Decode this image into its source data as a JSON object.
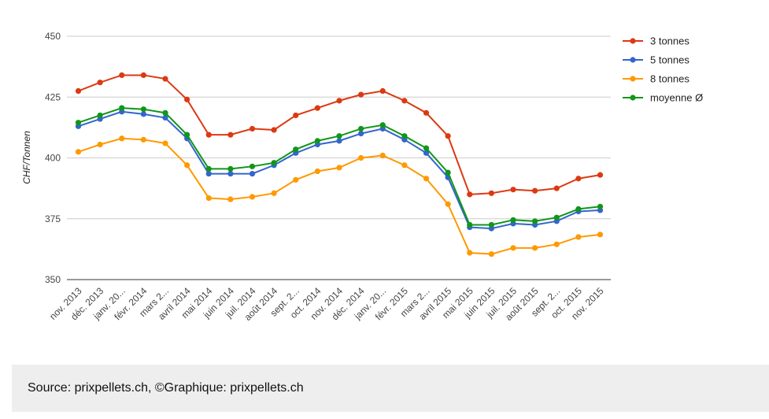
{
  "chart_data": {
    "type": "line",
    "title": "",
    "xlabel": "",
    "ylabel": "CHF/Tonnen",
    "ylim": [
      350,
      450
    ],
    "yticks": [
      350,
      375,
      400,
      425,
      450
    ],
    "grid": true,
    "legend_position": "right",
    "categories": [
      "nov. 2013",
      "déc. 2013",
      "janv. 20...",
      "févr. 2014",
      "mars 2...",
      "avril 2014",
      "mai 2014",
      "juin 2014",
      "juil. 2014",
      "août 2014",
      "sept. 2...",
      "oct. 2014",
      "nov. 2014",
      "déc. 2014",
      "janv. 20...",
      "févr. 2015",
      "mars 2...",
      "avril 2015",
      "mai 2015",
      "juin 2015",
      "juil. 2015",
      "août 2015",
      "sept. 2...",
      "oct. 2015",
      "nov. 2015"
    ],
    "series": [
      {
        "name": "3 tonnes",
        "color": "#dc3912",
        "values": [
          427.5,
          431,
          434,
          434,
          432.5,
          424,
          409.5,
          409.5,
          412,
          411.5,
          417.5,
          420.5,
          423.5,
          426,
          427.5,
          423.5,
          418.5,
          409,
          385,
          385.5,
          387,
          386.5,
          387.5,
          391.5,
          393
        ]
      },
      {
        "name": "5 tonnes",
        "color": "#3366cc",
        "values": [
          413,
          416,
          419,
          418,
          416.5,
          408,
          393.5,
          393.5,
          393.5,
          397,
          402,
          405.5,
          407,
          410,
          412,
          407.5,
          402,
          392,
          371.5,
          371,
          373,
          372.5,
          374,
          378,
          378.5
        ]
      },
      {
        "name": "8 tonnes",
        "color": "#ff9900",
        "values": [
          402.5,
          405.5,
          408,
          407.5,
          406,
          397,
          383.5,
          383,
          384,
          385.5,
          391,
          394.5,
          396,
          400,
          401,
          397,
          391.5,
          381,
          361,
          360.5,
          363,
          363,
          364.5,
          367.5,
          368.5
        ]
      },
      {
        "name": "moyenne Ø",
        "color": "#109618",
        "values": [
          414.5,
          417.5,
          420.5,
          420,
          418.5,
          409.5,
          395.5,
          395.5,
          396.5,
          398,
          403.5,
          407,
          409,
          412,
          413.5,
          409,
          404,
          394,
          372.5,
          372.5,
          374.5,
          374,
          375.5,
          379,
          380
        ]
      }
    ]
  },
  "source": {
    "text": "Source: prixpellets.ch, ©Graphique: prixpellets.ch"
  }
}
